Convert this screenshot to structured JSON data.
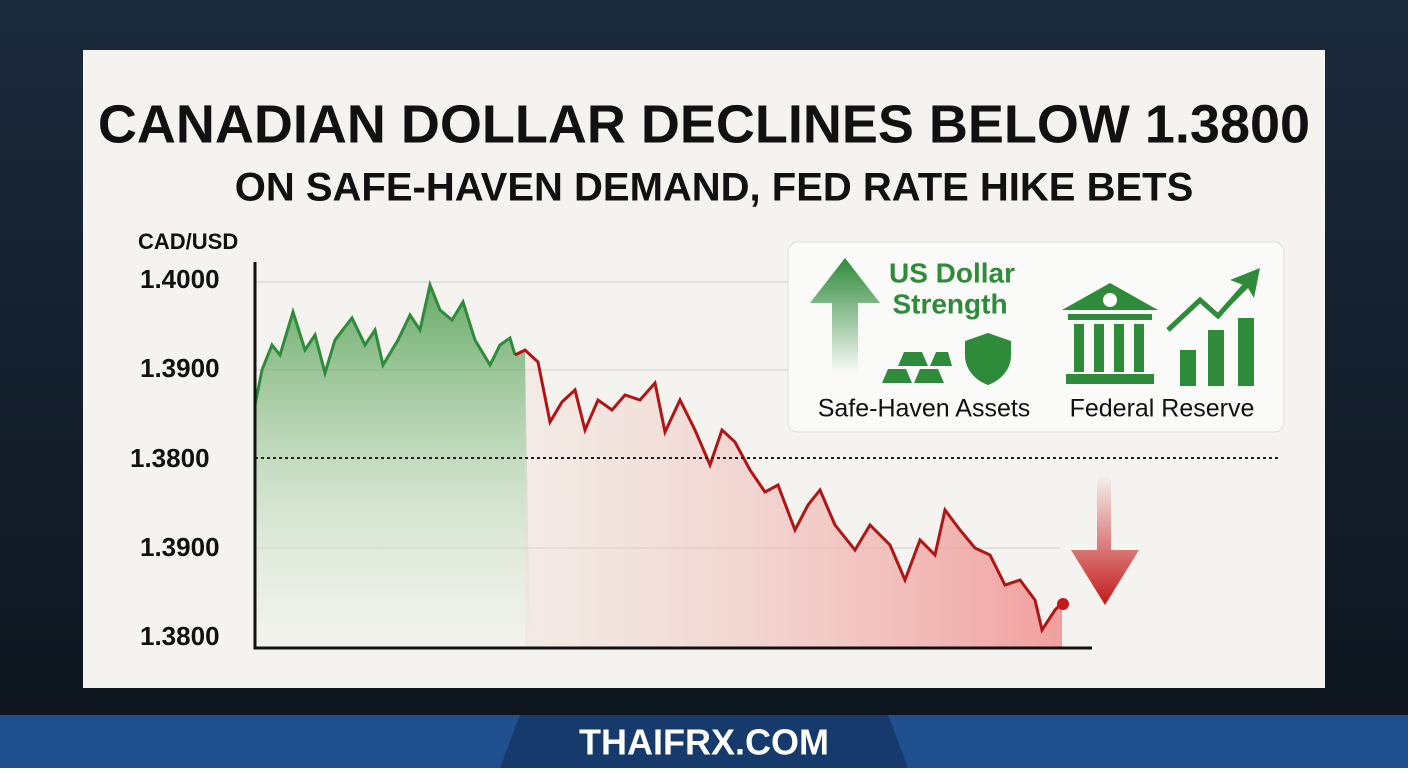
{
  "header": {
    "title": "CANADIAN DOLLAR DECLINES BELOW 1.3800",
    "subtitle": "ON SAFE-HAVEN DEMAND, FED RATE HIKE BETS"
  },
  "chart": {
    "axis_title": "CAD/USD",
    "axis_labels": [
      "1.4000",
      "1.3900",
      "1.3800",
      "1.3900",
      "1.3800"
    ]
  },
  "panel": {
    "headline": [
      "US Dollar",
      "Strength"
    ],
    "left_caption": "Safe-Haven Assets",
    "right_caption": "Federal Reserve"
  },
  "footer": {
    "site": "THAIFRX.COM"
  }
}
